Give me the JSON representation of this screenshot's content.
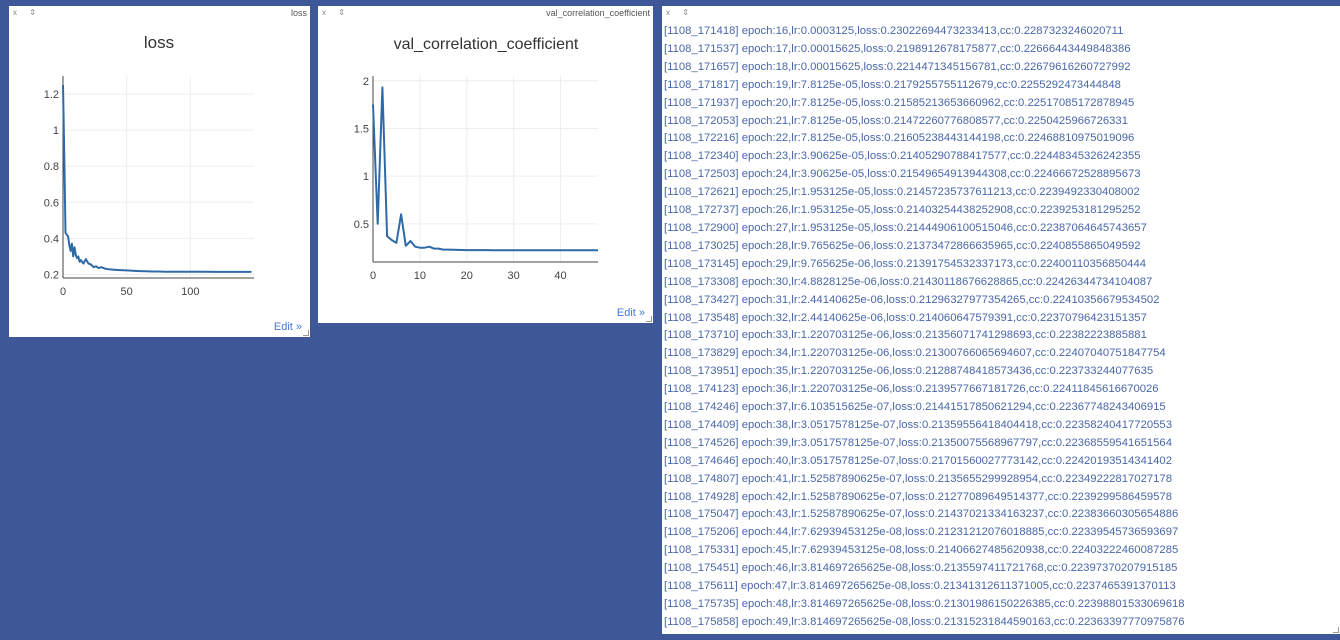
{
  "panes": {
    "loss": {
      "ctrl": "x ⇕",
      "name": "loss",
      "edit_label": "Edit »"
    },
    "val": {
      "ctrl": "x ⇕",
      "name": "val_correlation_coefficient",
      "edit_label": "Edit »"
    },
    "log": {
      "ctrl": "x ⇕"
    }
  },
  "chart_data": [
    {
      "type": "line",
      "title": "loss",
      "xlim": [
        0,
        150
      ],
      "ylim": [
        0.18,
        1.3
      ],
      "x_ticks": [
        0,
        50,
        100
      ],
      "y_ticks": [
        0.2,
        0.4,
        0.6,
        0.8,
        1,
        1.2
      ],
      "grid": true,
      "line_color": "#2f6aa8",
      "series": [
        {
          "x": [
            0,
            1,
            2,
            3,
            4,
            5,
            6,
            7,
            8,
            9,
            10,
            11,
            12,
            13,
            14,
            16,
            18,
            20,
            22,
            24,
            26,
            28,
            30,
            33,
            36,
            40,
            45,
            50,
            55,
            60,
            65,
            70,
            75,
            80,
            90,
            100,
            110,
            120,
            130,
            140,
            148
          ],
          "y": [
            1.25,
            0.85,
            0.43,
            0.42,
            0.41,
            0.36,
            0.33,
            0.37,
            0.3,
            0.35,
            0.31,
            0.29,
            0.3,
            0.27,
            0.28,
            0.26,
            0.285,
            0.26,
            0.255,
            0.24,
            0.245,
            0.235,
            0.24,
            0.232,
            0.228,
            0.226,
            0.224,
            0.222,
            0.22,
            0.218,
            0.217,
            0.216,
            0.216,
            0.215,
            0.215,
            0.215,
            0.215,
            0.214,
            0.214,
            0.214,
            0.214
          ]
        }
      ]
    },
    {
      "type": "line",
      "title": "val_correlation_coefficient",
      "xlim": [
        0,
        48
      ],
      "ylim": [
        0.1,
        2.05
      ],
      "x_ticks": [
        0,
        10,
        20,
        30,
        40
      ],
      "y_ticks": [
        0.5,
        1,
        1.5,
        2
      ],
      "grid": true,
      "line_color": "#2f6aa8",
      "series": [
        {
          "x": [
            0,
            1,
            2,
            3,
            4,
            5,
            6,
            7,
            8,
            9,
            10,
            11,
            12,
            13,
            14,
            15,
            16,
            17,
            18,
            19,
            20,
            22,
            24,
            26,
            28,
            30,
            32,
            34,
            36,
            38,
            40,
            42,
            44,
            46,
            48
          ],
          "y": [
            1.75,
            0.5,
            1.93,
            0.37,
            0.33,
            0.3,
            0.6,
            0.27,
            0.32,
            0.26,
            0.25,
            0.25,
            0.26,
            0.24,
            0.24,
            0.23,
            0.23,
            0.228,
            0.227,
            0.226,
            0.225,
            0.225,
            0.225,
            0.224,
            0.224,
            0.224,
            0.224,
            0.224,
            0.224,
            0.224,
            0.224,
            0.224,
            0.224,
            0.224,
            0.224
          ]
        }
      ]
    }
  ],
  "log_lines": [
    "[1108_171418] epoch:16,lr:0.0003125,loss:0.23022694473233413,cc:0.2287323246020711",
    "[1108_171537] epoch:17,lr:0.00015625,loss:0.2198912678175877,cc:0.22666443449848386",
    "[1108_171657] epoch:18,lr:0.00015625,loss:0.2214471345156781,cc:0.22679616260727992",
    "[1108_171817] epoch:19,lr:7.8125e-05,loss:0.2179255755112679,cc:0.2255292473444848",
    "[1108_171937] epoch:20,lr:7.8125e-05,loss:0.21585213653660962,cc:0.22517085172878945",
    "[1108_172053] epoch:21,lr:7.8125e-05,loss:0.21472260776808577,cc:0.2250425966726331",
    "[1108_172216] epoch:22,lr:7.8125e-05,loss:0.21605238443144198,cc:0.22468810975019096",
    "[1108_172340] epoch:23,lr:3.90625e-05,loss:0.21405290788417577,cc:0.22448345326242355",
    "[1108_172503] epoch:24,lr:3.90625e-05,loss:0.21549654913944308,cc:0.22466672528895673",
    "[1108_172621] epoch:25,lr:1.953125e-05,loss:0.21457235737611213,cc:0.2239492330408002",
    "[1108_172737] epoch:26,lr:1.953125e-05,loss:0.21403254438252908,cc:0.2239253181295252",
    "[1108_172900] epoch:27,lr:1.953125e-05,loss:0.21444906100515046,cc:0.22387064645743657",
    "[1108_173025] epoch:28,lr:9.765625e-06,loss:0.21373472866635965,cc:0.2240855865049592",
    "[1108_173145] epoch:29,lr:9.765625e-06,loss:0.21391754532337173,cc:0.22400110356850444",
    "[1108_173308] epoch:30,lr:4.8828125e-06,loss:0.21430118676628865,cc:0.22426344734104087",
    "[1108_173427] epoch:31,lr:2.44140625e-06,loss:0.21296327977354265,cc:0.22410356679534502",
    "[1108_173548] epoch:32,lr:2.44140625e-06,loss:0.214060647579391,cc:0.22370796423151357",
    "[1108_173710] epoch:33,lr:1.220703125e-06,loss:0.21356071741298693,cc:0.22382223885881",
    "[1108_173829] epoch:34,lr:1.220703125e-06,loss:0.21300766065694607,cc:0.22407040751847754",
    "[1108_173951] epoch:35,lr:1.220703125e-06,loss:0.21288748418573436,cc:0.223733244077635",
    "[1108_174123] epoch:36,lr:1.220703125e-06,loss:0.2139577667181726,cc:0.22411845616670026",
    "[1108_174246] epoch:37,lr:6.103515625e-07,loss:0.21441517850621294,cc:0.22367748243406915",
    "[1108_174409] epoch:38,lr:3.0517578125e-07,loss:0.21359556418404418,cc:0.22358240417720553",
    "[1108_174526] epoch:39,lr:3.0517578125e-07,loss:0.21350075568967797,cc:0.22368559541651564",
    "[1108_174646] epoch:40,lr:3.0517578125e-07,loss:0.21701560027773142,cc:0.22420193514341402",
    "[1108_174807] epoch:41,lr:1.52587890625e-07,loss:0.2135655299928954,cc:0.22349222817027178",
    "[1108_174928] epoch:42,lr:1.52587890625e-07,loss:0.21277089649514377,cc:0.2239299586459578",
    "[1108_175047] epoch:43,lr:1.52587890625e-07,loss:0.21437021334163237,cc:0.22383660305654886",
    "[1108_175206] epoch:44,lr:7.62939453125e-08,loss:0.21231212076018885,cc:0.22339545736593697",
    "[1108_175331] epoch:45,lr:7.62939453125e-08,loss:0.21406627485620938,cc:0.22403222460087285",
    "[1108_175451] epoch:46,lr:3.814697265625e-08,loss:0.2135597411721768,cc:0.22397370207915185",
    "[1108_175611] epoch:47,lr:3.814697265625e-08,loss:0.21341312611371005,cc:0.2237465391370113",
    "[1108_175735] epoch:48,lr:3.814697265625e-08,loss:0.21301986150226385,cc:0.22398801533069618",
    "[1108_175858] epoch:49,lr:3.814697265625e-08,loss:0.21315231844590163,cc:0.22363397770975876"
  ]
}
